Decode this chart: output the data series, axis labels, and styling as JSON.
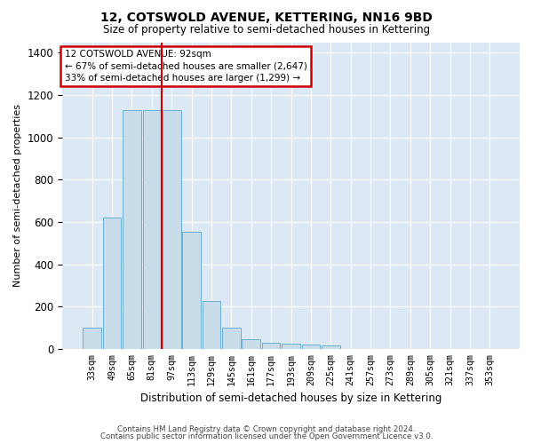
{
  "title": "12, COTSWOLD AVENUE, KETTERING, NN16 9BD",
  "subtitle": "Size of property relative to semi-detached houses in Kettering",
  "xlabel": "Distribution of semi-detached houses by size in Kettering",
  "ylabel": "Number of semi-detached properties",
  "categories": [
    "33sqm",
    "49sqm",
    "65sqm",
    "81sqm",
    "97sqm",
    "113sqm",
    "129sqm",
    "145sqm",
    "161sqm",
    "177sqm",
    "193sqm",
    "209sqm",
    "225sqm",
    "241sqm",
    "257sqm",
    "273sqm",
    "289sqm",
    "305sqm",
    "321sqm",
    "337sqm",
    "353sqm"
  ],
  "values": [
    100,
    620,
    1130,
    1130,
    1130,
    555,
    225,
    100,
    45,
    28,
    25,
    20,
    15,
    0,
    0,
    0,
    0,
    0,
    0,
    0,
    0
  ],
  "bar_color": "#c9dcea",
  "bar_edge_color": "#6aaed6",
  "highlight_line_after_idx": 3,
  "highlight_color": "#cc0000",
  "annotation_title": "12 COTSWOLD AVENUE: 92sqm",
  "annotation_line1": "← 67% of semi-detached houses are smaller (2,647)",
  "annotation_line2": "33% of semi-detached houses are larger (1,299) →",
  "annotation_box_color": "#cc0000",
  "ylim": [
    0,
    1450
  ],
  "yticks": [
    0,
    200,
    400,
    600,
    800,
    1000,
    1200,
    1400
  ],
  "footer1": "Contains HM Land Registry data © Crown copyright and database right 2024.",
  "footer2": "Contains public sector information licensed under the Open Government Licence v3.0.",
  "fig_bg_color": "#ffffff",
  "plot_bg_color": "#dce9f5"
}
